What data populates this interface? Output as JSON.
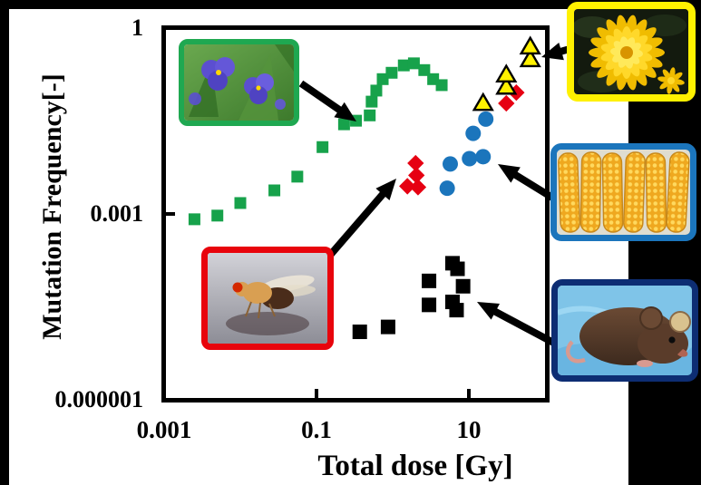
{
  "chart_data": {
    "type": "scatter",
    "title": "",
    "xlabel": "Total dose [Gy]",
    "ylabel": "Mutation Frequency[-]",
    "x_scale": "log",
    "y_scale": "log",
    "xlim": [
      0.001,
      100
    ],
    "ylim": [
      1e-06,
      1
    ],
    "grid": false,
    "legend": "none (series indicated by photo callouts with arrows)",
    "x_ticks": [
      {
        "value": 0.001,
        "label": "0.001"
      },
      {
        "value": 0.1,
        "label": "0.1"
      },
      {
        "value": 10,
        "label": "10"
      }
    ],
    "y_ticks": [
      {
        "value": 1,
        "label": "1"
      },
      {
        "value": 0.001,
        "label": "0.001"
      },
      {
        "value": 1e-06,
        "label": "0.000001"
      }
    ],
    "series": [
      {
        "name": "spiderwort",
        "organism": "spiderwort (purple flower photo, green frame)",
        "marker": "square",
        "color": "#17A24B",
        "size": 13,
        "points": [
          [
            0.0025,
            0.00082
          ],
          [
            0.005,
            0.00094
          ],
          [
            0.01,
            0.0015
          ],
          [
            0.028,
            0.0024
          ],
          [
            0.056,
            0.004
          ],
          [
            0.12,
            0.012
          ],
          [
            0.23,
            0.028
          ],
          [
            0.33,
            0.032
          ],
          [
            0.5,
            0.039
          ],
          [
            0.53,
            0.065
          ],
          [
            0.61,
            0.098
          ],
          [
            0.74,
            0.15
          ],
          [
            0.97,
            0.19
          ],
          [
            1.4,
            0.25
          ],
          [
            1.9,
            0.27
          ],
          [
            2.6,
            0.21
          ],
          [
            3.4,
            0.15
          ],
          [
            4.4,
            0.12
          ]
        ]
      },
      {
        "name": "mouse",
        "organism": "mouse (photo, dark navy frame)",
        "marker": "square",
        "color": "#000000",
        "size": 16,
        "points": [
          [
            0.37,
            1.25e-05
          ],
          [
            0.87,
            1.5e-05
          ],
          [
            3.0,
            8.3e-05
          ],
          [
            3.0,
            3.4e-05
          ],
          [
            6.1,
            0.00016
          ],
          [
            7.1,
            0.00013
          ],
          [
            8.4,
            6.8e-05
          ],
          [
            6.1,
            3.8e-05
          ],
          [
            6.9,
            2.8e-05
          ]
        ]
      },
      {
        "name": "drosophila",
        "organism": "fruit fly (photo, red frame)",
        "marker": "diamond",
        "color": "#E60012",
        "size": 18,
        "points": [
          [
            1.56,
            0.0028
          ],
          [
            2.15,
            0.0027
          ],
          [
            2.05,
            0.0042
          ],
          [
            2.0,
            0.0066
          ],
          [
            31,
            0.061
          ],
          [
            42,
            0.091
          ]
        ]
      },
      {
        "name": "maize",
        "organism": "corn cobs (photo, blue frame)",
        "marker": "circle",
        "color": "#1B75BC",
        "size": 17,
        "points": [
          [
            5.2,
            0.0026
          ],
          [
            5.7,
            0.0064
          ],
          [
            10.2,
            0.0078
          ],
          [
            15.4,
            0.0084
          ],
          [
            11.4,
            0.02
          ],
          [
            16.7,
            0.034
          ]
        ]
      },
      {
        "name": "chrysanthemum",
        "organism": "chrysanthemum (yellow flower photo, yellow frame)",
        "marker": "triangle",
        "color": "#FFF100",
        "outline": "#000000",
        "size": 20,
        "points": [
          [
            15.4,
            0.059
          ],
          [
            31,
            0.108
          ],
          [
            31,
            0.17
          ],
          [
            64,
            0.3
          ],
          [
            64,
            0.48
          ]
        ]
      }
    ]
  },
  "callouts": {
    "spiderwort": {
      "frame_color": "#1FA851",
      "alt": "purple-spiderwort-flowers-photo"
    },
    "drosophila": {
      "frame_color": "#E8040C",
      "alt": "fruit-fly-with-red-eye-photo"
    },
    "chrysanthemum": {
      "frame_color": "#FFF100",
      "alt": "yellow-chrysanthemum-bloom-photo"
    },
    "maize": {
      "frame_color": "#1B75BC",
      "alt": "six-yellow-corn-cobs-photo"
    },
    "mouse": {
      "frame_color": "#0D2D73",
      "alt": "brown-mouse-on-blue-cloth-photo"
    }
  },
  "colors": {
    "canvas_bg": "#000000",
    "slide_bg": "#FFFFFF",
    "axis": "#000000",
    "arrow": "#000000"
  }
}
